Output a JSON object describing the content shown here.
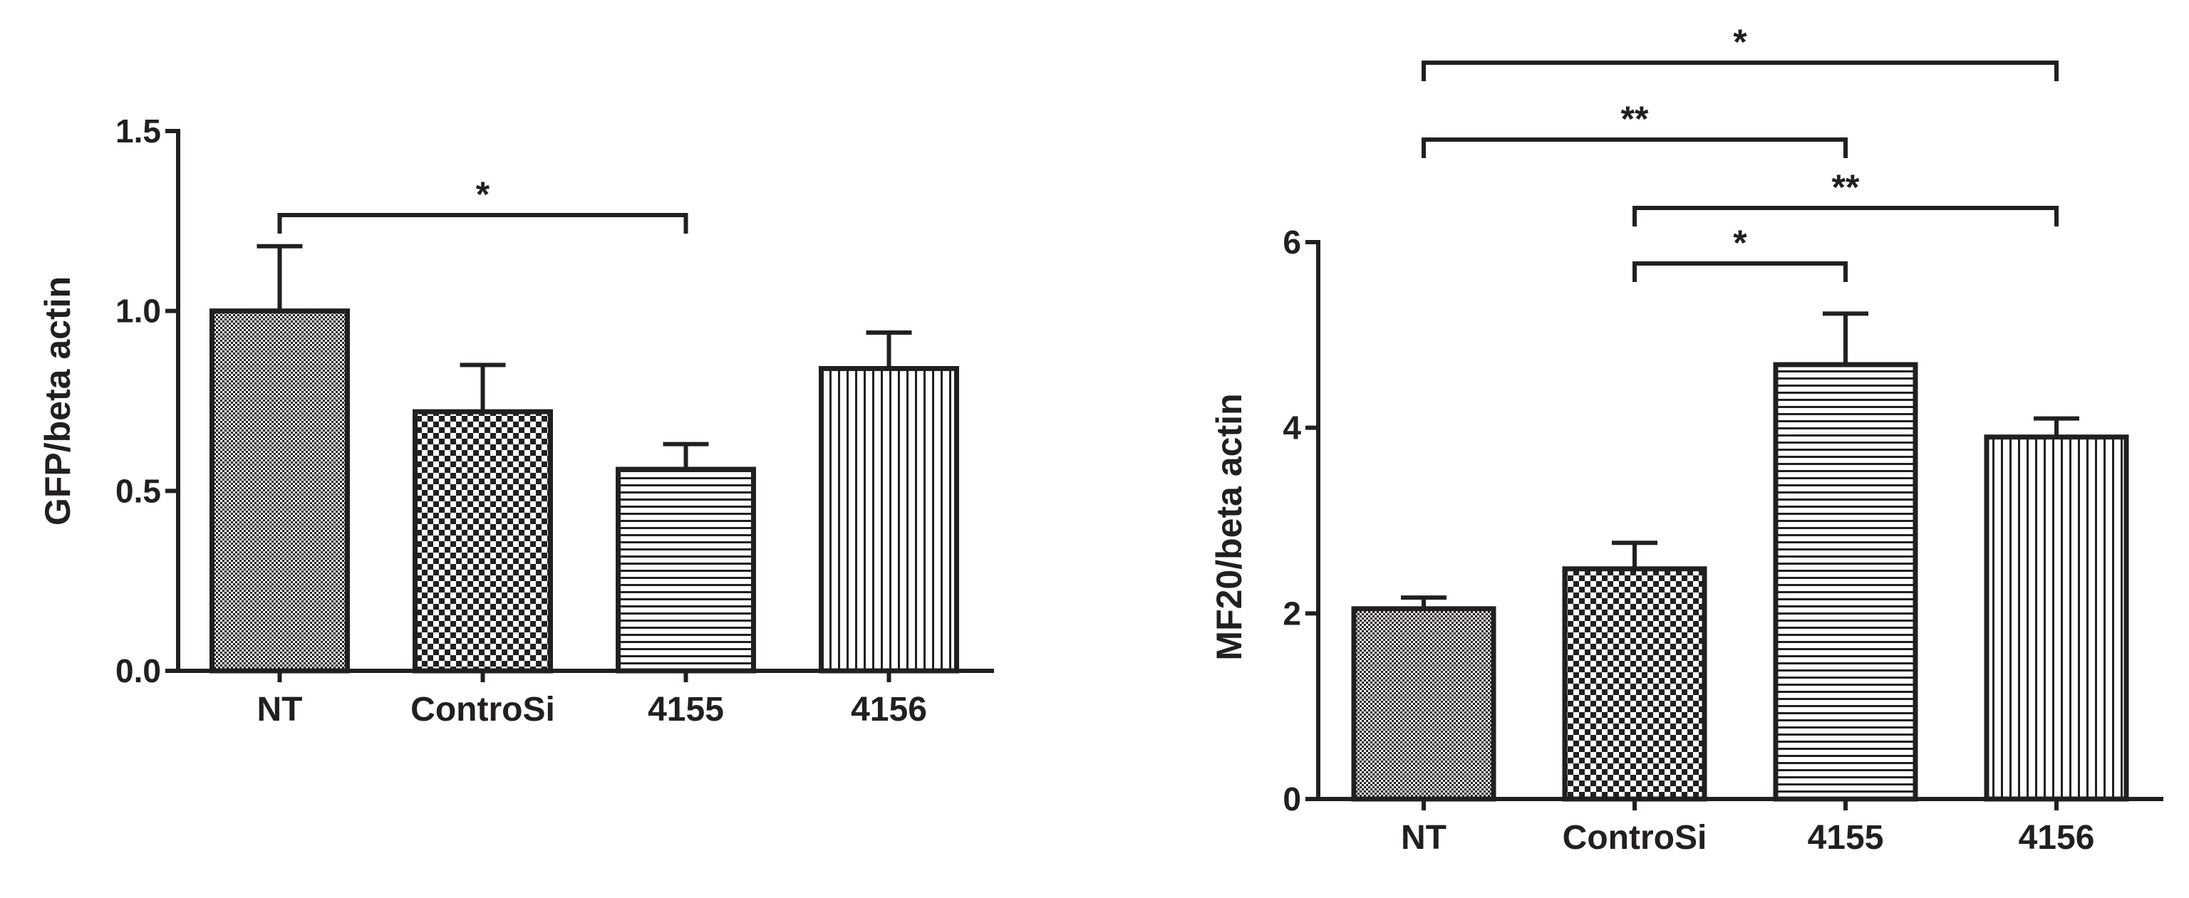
{
  "chart_data": [
    {
      "type": "bar",
      "title": "",
      "xlabel": "",
      "ylabel": "GFP/beta actin",
      "categories": [
        "NT",
        "ControSi",
        "4155",
        "4156"
      ],
      "values": [
        1.0,
        0.72,
        0.56,
        0.84
      ],
      "errors": [
        0.18,
        0.13,
        0.07,
        0.1
      ],
      "patterns": [
        "fine-checker",
        "checker",
        "horizontal-lines",
        "vertical-lines"
      ],
      "ylim": [
        0,
        1.5
      ],
      "yticks": [
        0.0,
        0.5,
        1.0,
        1.5
      ],
      "ytick_labels": [
        "0.0",
        "0.5",
        "1.0",
        "1.5"
      ],
      "grid": false,
      "significance": [
        {
          "from": "NT",
          "to": "4155",
          "label": "*"
        }
      ]
    },
    {
      "type": "bar",
      "title": "",
      "xlabel": "",
      "ylabel": "MF20/beta actin",
      "categories": [
        "NT",
        "ControSi",
        "4155",
        "4156"
      ],
      "values": [
        2.05,
        2.48,
        4.68,
        3.9
      ],
      "errors": [
        0.12,
        0.28,
        0.55,
        0.2
      ],
      "patterns": [
        "fine-checker",
        "checker",
        "horizontal-lines",
        "vertical-lines"
      ],
      "ylim": [
        0,
        6
      ],
      "yticks": [
        0,
        2,
        4,
        6
      ],
      "ytick_labels": [
        "0",
        "2",
        "4",
        "6"
      ],
      "grid": false,
      "significance": [
        {
          "from": "NT",
          "to": "4156",
          "label": "*"
        },
        {
          "from": "NT",
          "to": "4155",
          "label": "**"
        },
        {
          "from": "ControSi",
          "to": "4156",
          "label": "**"
        },
        {
          "from": "ControSi",
          "to": "4155",
          "label": "*"
        }
      ]
    }
  ],
  "colors": {
    "ink": "#231f20",
    "background": "#ffffff"
  }
}
